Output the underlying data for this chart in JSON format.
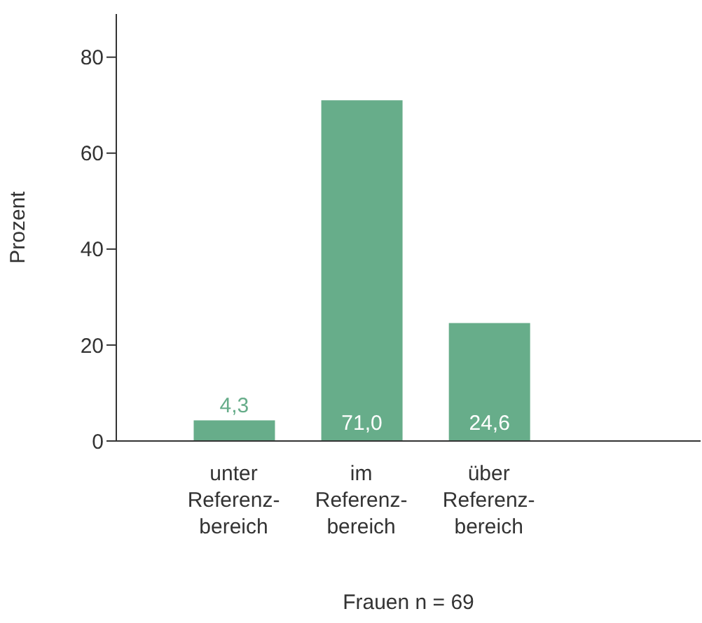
{
  "chart_data": {
    "type": "bar",
    "categories": [
      "unter\nReferenz-\nbereich",
      "im\nReferenz-\nbereich",
      "über\nReferenz-\nbereich"
    ],
    "values": [
      4.3,
      71.0,
      24.6
    ],
    "color": "#67ad8a",
    "value_labels": [
      "4,3",
      "71,0",
      "24,6"
    ],
    "ylabel": "Prozent",
    "xlabel": "Frauen n = 69",
    "ylim": [
      0,
      89
    ],
    "yticks": [
      0,
      20,
      40,
      60,
      80
    ],
    "grid": false,
    "legend": false
  }
}
